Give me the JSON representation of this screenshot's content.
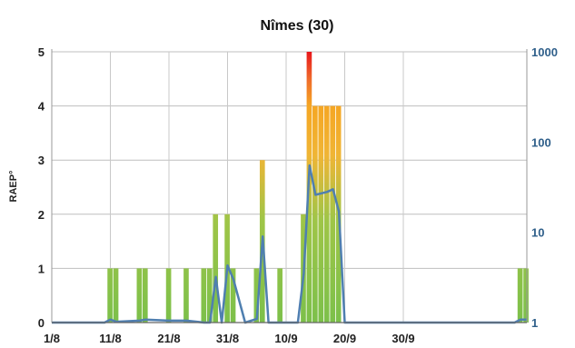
{
  "chart_data": {
    "type": "bar",
    "title": "Nîmes (30)",
    "ylabel": "RAEP°",
    "ylim": [
      0,
      5
    ],
    "y_ticks": [
      "0",
      "1",
      "2",
      "3",
      "4",
      "5"
    ],
    "x_ticks": [
      "1/8",
      "11/8",
      "21/8",
      "31/8",
      "10/9",
      "20/9",
      "30/9"
    ],
    "y2_ticks": [
      "1",
      "10",
      "100",
      "1000"
    ],
    "y2_scale": "log",
    "y2lim": [
      1,
      1000
    ],
    "grid": true,
    "bar_days": [
      {
        "day": 11,
        "value": 1
      },
      {
        "day": 12,
        "value": 1
      },
      {
        "day": 16,
        "value": 1
      },
      {
        "day": 17,
        "value": 1
      },
      {
        "day": 21,
        "value": 1
      },
      {
        "day": 24,
        "value": 1
      },
      {
        "day": 27,
        "value": 1
      },
      {
        "day": 28,
        "value": 1
      },
      {
        "day": 29,
        "value": 2
      },
      {
        "day": 31,
        "value": 2
      },
      {
        "day": 32,
        "value": 1
      },
      {
        "day": 36,
        "value": 1
      },
      {
        "day": 37,
        "value": 3
      },
      {
        "day": 40,
        "value": 1
      },
      {
        "day": 44,
        "value": 2
      },
      {
        "day": 45,
        "value": 5
      },
      {
        "day": 46,
        "value": 4
      },
      {
        "day": 47,
        "value": 4
      },
      {
        "day": 48,
        "value": 4
      },
      {
        "day": 49,
        "value": 4
      },
      {
        "day": 50,
        "value": 4
      },
      {
        "day": 60,
        "value": 0
      },
      {
        "day": 71,
        "value": 0
      },
      {
        "day": 81,
        "value": 1
      },
      {
        "day": 82,
        "value": 1
      }
    ],
    "line_series": {
      "name": "",
      "points": [
        [
          1,
          1
        ],
        [
          10,
          1
        ],
        [
          11,
          1.08
        ],
        [
          12,
          1.02
        ],
        [
          16,
          1.05
        ],
        [
          17,
          1.08
        ],
        [
          21,
          1.05
        ],
        [
          24,
          1.05
        ],
        [
          27,
          1.0
        ],
        [
          28,
          1.0
        ],
        [
          29,
          3.2
        ],
        [
          30,
          1.0
        ],
        [
          31,
          4.3
        ],
        [
          32,
          3.0
        ],
        [
          34,
          1.0
        ],
        [
          36,
          1.1
        ],
        [
          37,
          9.0
        ],
        [
          38,
          1.0
        ],
        [
          40,
          1.0
        ],
        [
          43,
          1.0
        ],
        [
          44,
          3.5
        ],
        [
          45,
          55
        ],
        [
          46,
          26
        ],
        [
          47,
          27
        ],
        [
          48,
          28
        ],
        [
          49,
          30
        ],
        [
          50,
          17
        ],
        [
          51,
          1.0
        ],
        [
          60,
          1.0
        ],
        [
          70,
          1.0
        ],
        [
          80,
          1.0
        ],
        [
          81,
          1.08
        ],
        [
          82,
          1.08
        ]
      ]
    }
  }
}
